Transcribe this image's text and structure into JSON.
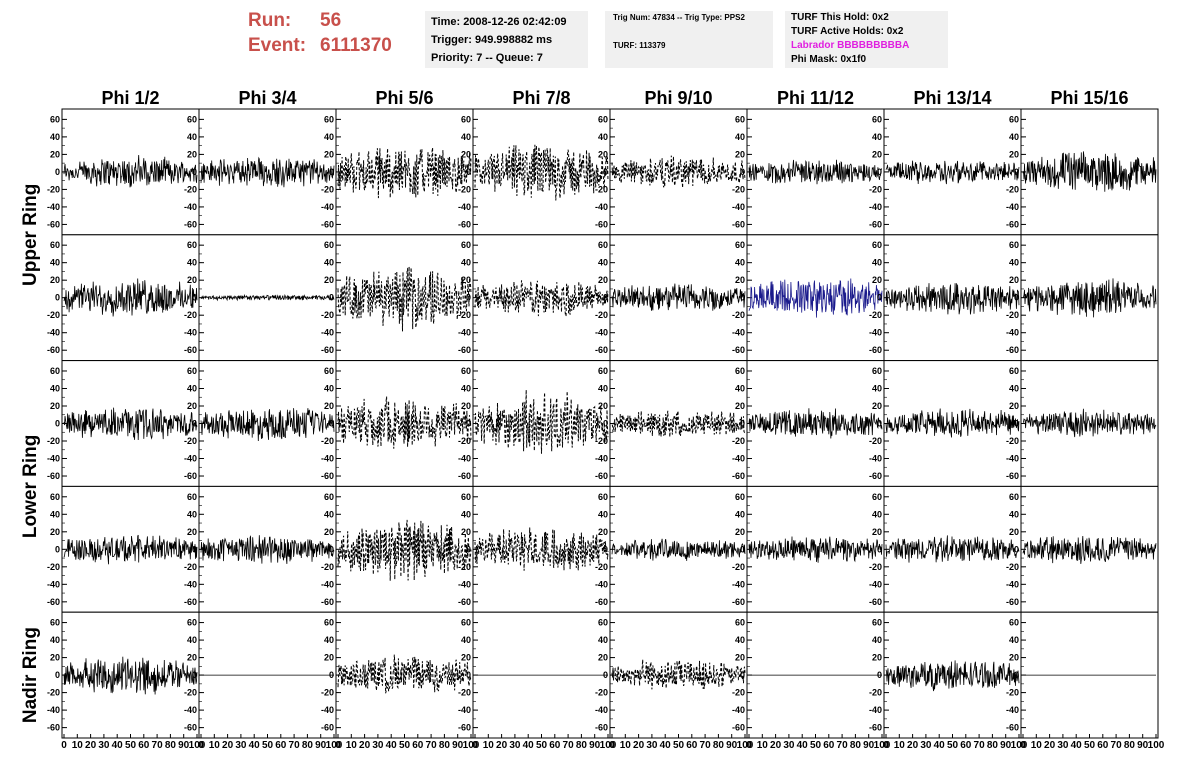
{
  "run": {
    "run_label": "Run:",
    "run_value": "56",
    "event_label": "Event:",
    "event_value": "6111370"
  },
  "info_time": {
    "time": "Time: 2008-12-26 02:42:09",
    "trigger": "Trigger: 949.998882 ms",
    "priority": "Priority: 7 -- Queue: 7"
  },
  "info_trig": {
    "line1": "Trig Num: 47834 -- Trig Type: PPS2",
    "line2": "TURF: 113379"
  },
  "info_turf": {
    "this_hold": "TURF This Hold: 0x2",
    "active_holds": "TURF Active Holds: 0x2",
    "labrador": "Labrador BBBBBBBBBA",
    "phi_mask": "Phi Mask: 0x1f0"
  },
  "colors": {
    "run_text": "#c8504b",
    "labrador_text": "#e020e0",
    "highlight_trace": "#1a1a8c",
    "trace": "#000000",
    "info_bg": "#f0f0f0"
  },
  "chart_data": {
    "type": "line",
    "columns": [
      "Phi 1/2",
      "Phi 3/4",
      "Phi 5/6",
      "Phi 7/8",
      "Phi 9/10",
      "Phi 11/12",
      "Phi 13/14",
      "Phi 15/16"
    ],
    "rows": [
      "Upper Ring",
      "Upper Ring",
      "Lower Ring",
      "Lower Ring",
      "Nadir Ring"
    ],
    "row_labels": [
      "Upper Ring",
      "Lower Ring",
      "Nadir Ring"
    ],
    "ylim": [
      -65,
      65
    ],
    "xlim": [
      0,
      100
    ],
    "y_ticks": [
      -60,
      -40,
      -20,
      0,
      20,
      40,
      60
    ],
    "x_ticks": [
      0,
      10,
      20,
      30,
      40,
      50,
      60,
      70,
      80,
      90,
      100
    ],
    "amplitude": [
      [
        17,
        17,
        28,
        30,
        17,
        14,
        14,
        22
      ],
      [
        20,
        3,
        33,
        20,
        16,
        22,
        18,
        20
      ],
      [
        18,
        18,
        30,
        32,
        15,
        16,
        16,
        15
      ],
      [
        16,
        16,
        33,
        24,
        12,
        14,
        15,
        16
      ],
      [
        20,
        0,
        22,
        0,
        17,
        0,
        17,
        0
      ]
    ],
    "style": [
      [
        "solid",
        "solid",
        "dashed",
        "dashed",
        "dashed",
        "solid",
        "solid",
        "solid"
      ],
      [
        "solid",
        "solid",
        "dashed",
        "dashed",
        "solid",
        "highlight",
        "solid",
        "solid"
      ],
      [
        "solid",
        "solid",
        "dashed",
        "dashed",
        "dashed",
        "solid",
        "solid",
        "solid"
      ],
      [
        "solid",
        "solid",
        "dashed",
        "dashed",
        "solid",
        "solid",
        "solid",
        "solid"
      ],
      [
        "solid",
        "flat",
        "dashed",
        "flat",
        "dashed",
        "flat",
        "solid",
        "flat"
      ]
    ]
  }
}
